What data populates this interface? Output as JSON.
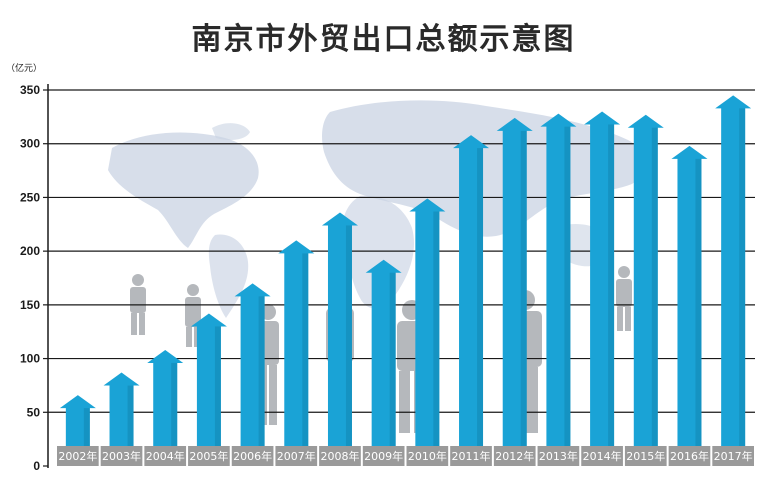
{
  "chart_data": {
    "type": "bar",
    "title": "南京市外贸出口总额示意图",
    "unit_label": "（亿元）",
    "categories": [
      "2002年",
      "2003年",
      "2004年",
      "2005年",
      "2006年",
      "2007年",
      "2008年",
      "2009年",
      "2010年",
      "2011年",
      "2012年",
      "2013年",
      "2014年",
      "2015年",
      "2016年",
      "2017年"
    ],
    "values": [
      66,
      87,
      108,
      142,
      170,
      210,
      236,
      192,
      249,
      308,
      324,
      328,
      330,
      327,
      298,
      345
    ],
    "ylim": [
      0,
      350
    ],
    "yticks": [
      0,
      50,
      100,
      150,
      200,
      250,
      300,
      350
    ],
    "grid": true,
    "legend": "none",
    "colors": {
      "bar": "#1aa3d6",
      "bar_shade": "#1386b3",
      "grid": "#1a1a1a",
      "label_bg": "#9a9a9a",
      "label_text": "#ffffff"
    }
  }
}
